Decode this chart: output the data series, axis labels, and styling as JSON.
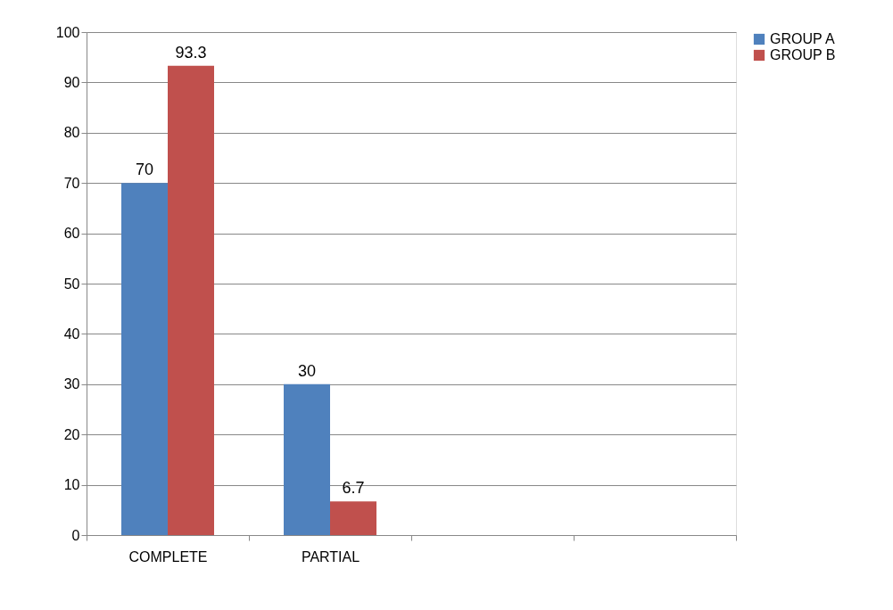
{
  "chart_data": {
    "type": "bar",
    "categories": [
      "COMPLETE",
      "PARTIAL",
      null,
      null
    ],
    "series": [
      {
        "name": "GROUP A",
        "color": "#4f81bd",
        "values": [
          70,
          30,
          null,
          null
        ]
      },
      {
        "name": "GROUP B",
        "color": "#c0504d",
        "values": [
          93.3,
          6.7,
          null,
          null
        ]
      }
    ],
    "ylim": [
      0,
      100
    ],
    "yticks": [
      0,
      10,
      20,
      30,
      40,
      50,
      60,
      70,
      80,
      90,
      100
    ],
    "grid": "y",
    "legend": "right",
    "data_labels": true
  }
}
